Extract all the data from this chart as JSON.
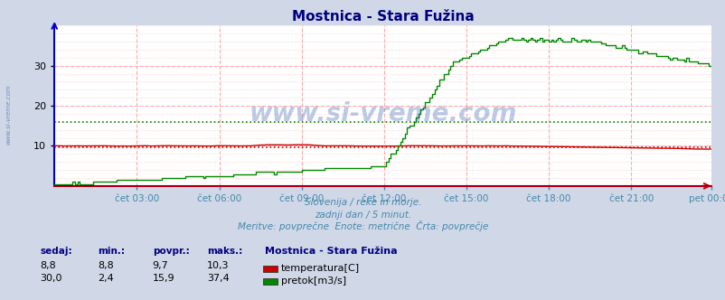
{
  "title": "Mostnica - Stara Fužina",
  "title_color": "#000080",
  "bg_color": "#d0d8e8",
  "plot_bg_color": "#ffffff",
  "grid_color_major": "#ffaaaa",
  "grid_color_minor": "#ffe0e0",
  "xlabel_color": "#4488aa",
  "subtitle_lines": [
    "Slovenija / reke in morje.",
    "zadnji dan / 5 minut.",
    "Meritve: povprečne  Enote: metrične  Črta: povprečje"
  ],
  "subtitle_color": "#4488aa",
  "watermark": "www.si-vreme.com",
  "watermark_color": "#2255aa",
  "watermark_alpha": 0.3,
  "ylim": [
    0,
    40
  ],
  "yticks": [
    10,
    20,
    30
  ],
  "n_points": 288,
  "temp_color": "#cc0000",
  "flow_color": "#008800",
  "height_color": "#0000cc",
  "temp_avg": 9.7,
  "flow_avg": 15.9,
  "xtick_labels": [
    "čet 03:00",
    "čet 06:00",
    "čet 09:00",
    "čet 12:00",
    "čet 15:00",
    "čet 18:00",
    "čet 21:00",
    "pet 00:00"
  ],
  "xtick_positions": [
    36,
    72,
    108,
    144,
    180,
    216,
    252,
    287
  ],
  "legend_title": "Mostnica - Stara Fužina",
  "legend_items": [
    {
      "label": "temperatura[C]",
      "color": "#cc0000"
    },
    {
      "label": "pretok[m3/s]",
      "color": "#008800"
    }
  ],
  "table_headers": [
    "sedaj:",
    "min.:",
    "povpr.:",
    "maks.:"
  ],
  "table_row1": [
    "8,8",
    "8,8",
    "9,7",
    "10,3"
  ],
  "table_row2": [
    "30,0",
    "2,4",
    "15,9",
    "37,4"
  ],
  "left_axis_color": "#0000cc",
  "bottom_axis_color": "#cc0000",
  "sidebar_text": "www.si-vreme.com"
}
